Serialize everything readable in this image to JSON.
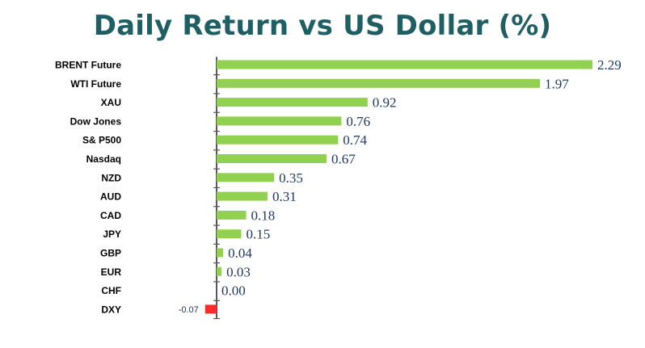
{
  "chart_data": {
    "type": "bar",
    "orientation": "horizontal",
    "title": "Daily Return vs US Dollar (%)",
    "xlabel": "",
    "ylabel": "",
    "categories": [
      "BRENT Future",
      "WTI Future",
      "XAU",
      "Dow Jones",
      "S& P500",
      "Nasdaq",
      "NZD",
      "AUD",
      "CAD",
      "JPY",
      "GBP",
      "EUR",
      "CHF",
      "DXY"
    ],
    "values": [
      2.29,
      1.97,
      0.92,
      0.76,
      0.74,
      0.67,
      0.35,
      0.31,
      0.18,
      0.15,
      0.04,
      0.03,
      0.0,
      -0.07
    ],
    "value_labels": [
      "2.29",
      "1.97",
      "0.92",
      "0.76",
      "0.74",
      "0.67",
      "0.35",
      "0.31",
      "0.18",
      "0.15",
      "0.04",
      "0.03",
      "0.00",
      "-0.07"
    ],
    "xlim": [
      -0.07,
      2.29
    ],
    "grid": false,
    "legend": "none",
    "colors": {
      "positive": "#92d050",
      "negative": "#ff2a2a",
      "title": "#1f5f63",
      "value_label": "#1f3864",
      "category_label": "#000000",
      "axis": "#595959"
    }
  }
}
